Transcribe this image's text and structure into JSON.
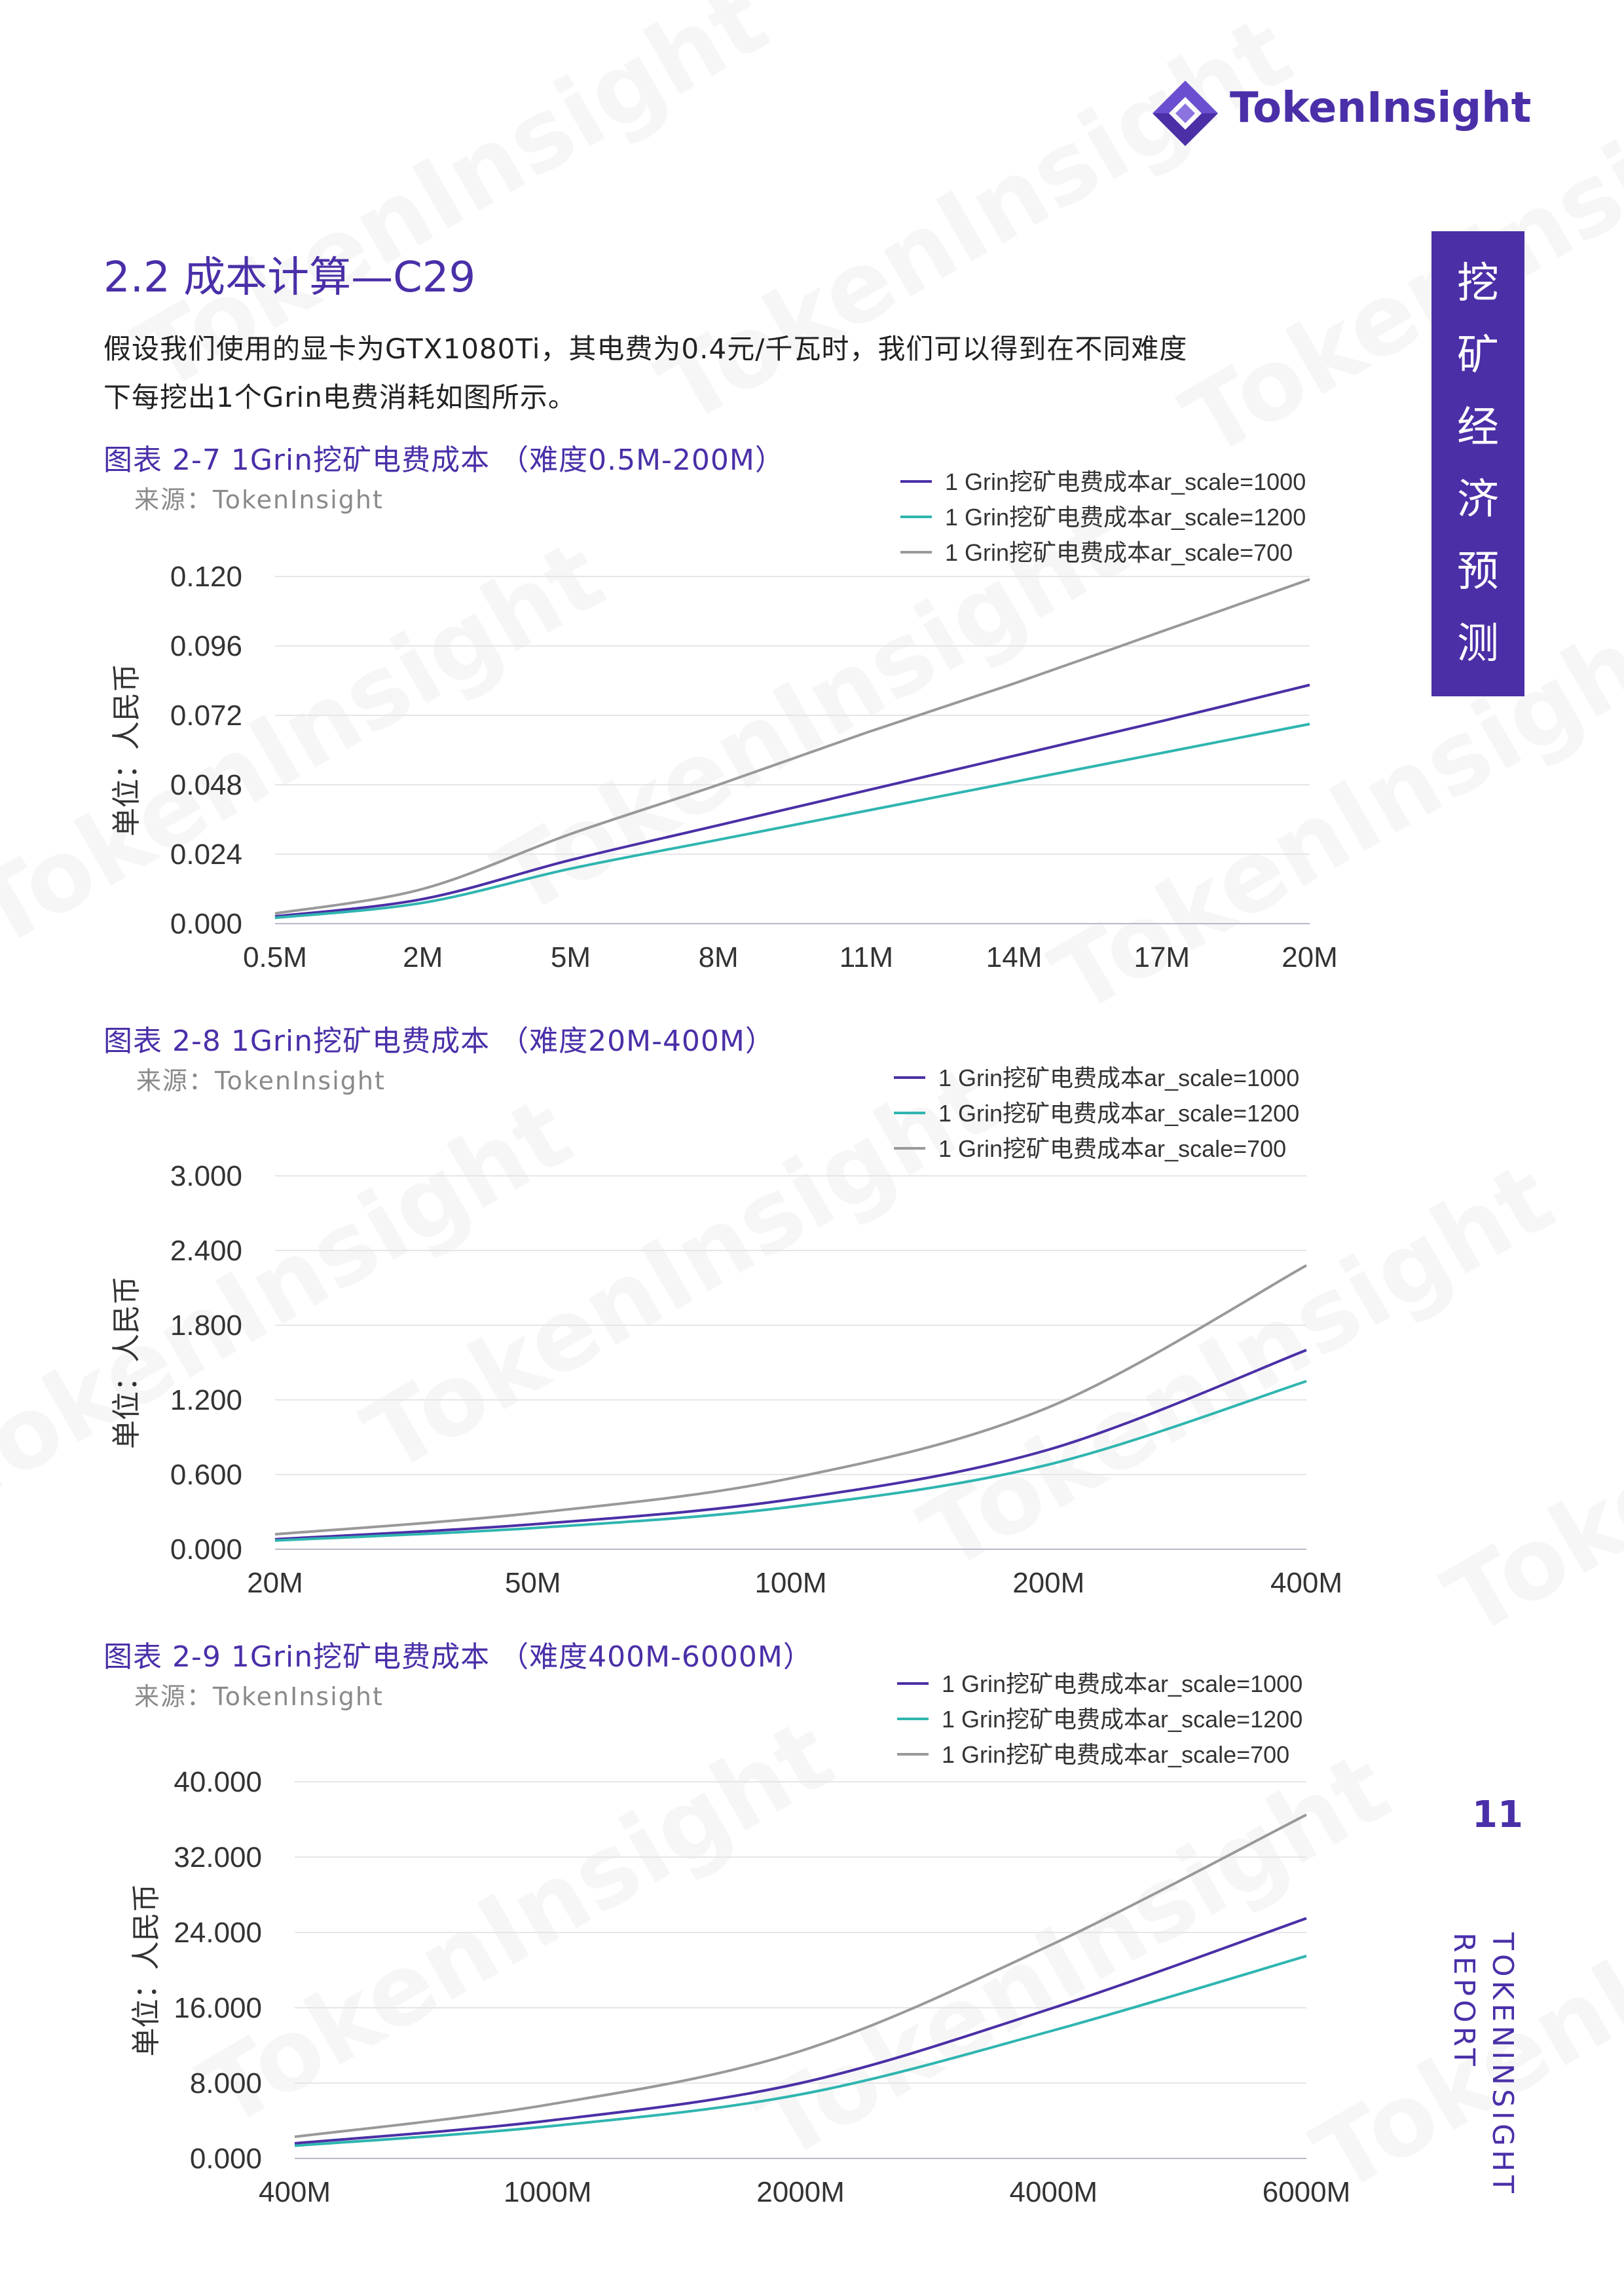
{
  "brand": {
    "name": "TokenInsight",
    "accent": "#4b2fa6"
  },
  "watermark": "TokenInsight",
  "section": {
    "title": "2.2 成本计算—C29"
  },
  "intro": {
    "line1": "假设我们使用的显卡为GTX1080Ti，其电费为0.4元/千瓦时，我们可以得到在不同难度",
    "line2": "下每挖出1个Grin电费消耗如图所示。"
  },
  "side_tab": {
    "chars": [
      "挖",
      "矿",
      "经",
      "济",
      "预",
      "测"
    ]
  },
  "page_number": "11",
  "vertical_footer": {
    "line1": "TOKENINSIGHT",
    "line2": "REPORT"
  },
  "chart_data": [
    {
      "type": "line",
      "title": "图表 2-7 1Grin挖矿电费成本 （难度0.5M-200M）",
      "source": "来源：TokenInsight",
      "ylabel": "单位：人民币",
      "ylim": [
        0,
        0.12
      ],
      "yticks": [
        "0.120",
        "0.096",
        "0.072",
        "0.048",
        "0.024",
        "0.000"
      ],
      "categories": [
        "0.5M",
        "2M",
        "5M",
        "8M",
        "11M",
        "14M",
        "17M",
        "20M"
      ],
      "series": [
        {
          "name": "1 Grin挖矿电费成本ar_scale=1000",
          "color": "#4b2fa6",
          "values": [
            0.0025,
            0.0085,
            0.022,
            0.034,
            0.046,
            0.058,
            0.07,
            0.0825
          ]
        },
        {
          "name": "1 Grin挖矿电费成本ar_scale=1200",
          "color": "#2fb5b0",
          "values": [
            0.002,
            0.0072,
            0.019,
            0.029,
            0.039,
            0.049,
            0.059,
            0.069
          ]
        },
        {
          "name": "1 Grin挖矿电费成本ar_scale=700",
          "color": "#999999",
          "values": [
            0.0035,
            0.012,
            0.031,
            0.048,
            0.066,
            0.083,
            0.101,
            0.119
          ]
        }
      ]
    },
    {
      "type": "line",
      "title": "图表 2-8 1Grin挖矿电费成本 （难度20M-400M）",
      "source": "来源：TokenInsight",
      "ylabel": "单位：人民币",
      "ylim": [
        0,
        3
      ],
      "yticks": [
        "3.000",
        "2.400",
        "1.800",
        "1.200",
        "0.600",
        "0.000"
      ],
      "categories": [
        "20M",
        "50M",
        "100M",
        "200M",
        "400M"
      ],
      "series": [
        {
          "name": "1 Grin挖矿电费成本ar_scale=1000",
          "color": "#4b2fa6",
          "values": [
            0.08,
            0.2,
            0.4,
            0.8,
            1.6
          ]
        },
        {
          "name": "1 Grin挖矿电费成本ar_scale=1200",
          "color": "#2fb5b0",
          "values": [
            0.07,
            0.17,
            0.34,
            0.68,
            1.35
          ]
        },
        {
          "name": "1 Grin挖矿电费成本ar_scale=700",
          "color": "#999999",
          "values": [
            0.12,
            0.29,
            0.57,
            1.14,
            2.28
          ]
        }
      ]
    },
    {
      "type": "line",
      "title": "图表 2-9 1Grin挖矿电费成本 （难度400M-6000M）",
      "source": "来源：TokenInsight",
      "ylabel": "单位：人民币",
      "ylim": [
        0,
        40
      ],
      "yticks": [
        "40.000",
        "32.000",
        "24.000",
        "16.000",
        "8.000",
        "0.000"
      ],
      "categories": [
        "400M",
        "1000M",
        "2000M",
        "4000M",
        "6000M"
      ],
      "series": [
        {
          "name": "1 Grin挖矿电费成本ar_scale=1000",
          "color": "#4b2fa6",
          "values": [
            1.6,
            4.0,
            8.0,
            16.0,
            25.5
          ]
        },
        {
          "name": "1 Grin挖矿电费成本ar_scale=1200",
          "color": "#2fb5b0",
          "values": [
            1.35,
            3.4,
            6.8,
            13.6,
            21.5
          ]
        },
        {
          "name": "1 Grin挖矿电费成本ar_scale=700",
          "color": "#999999",
          "values": [
            2.3,
            5.7,
            11.4,
            22.8,
            36.5
          ]
        }
      ]
    }
  ]
}
